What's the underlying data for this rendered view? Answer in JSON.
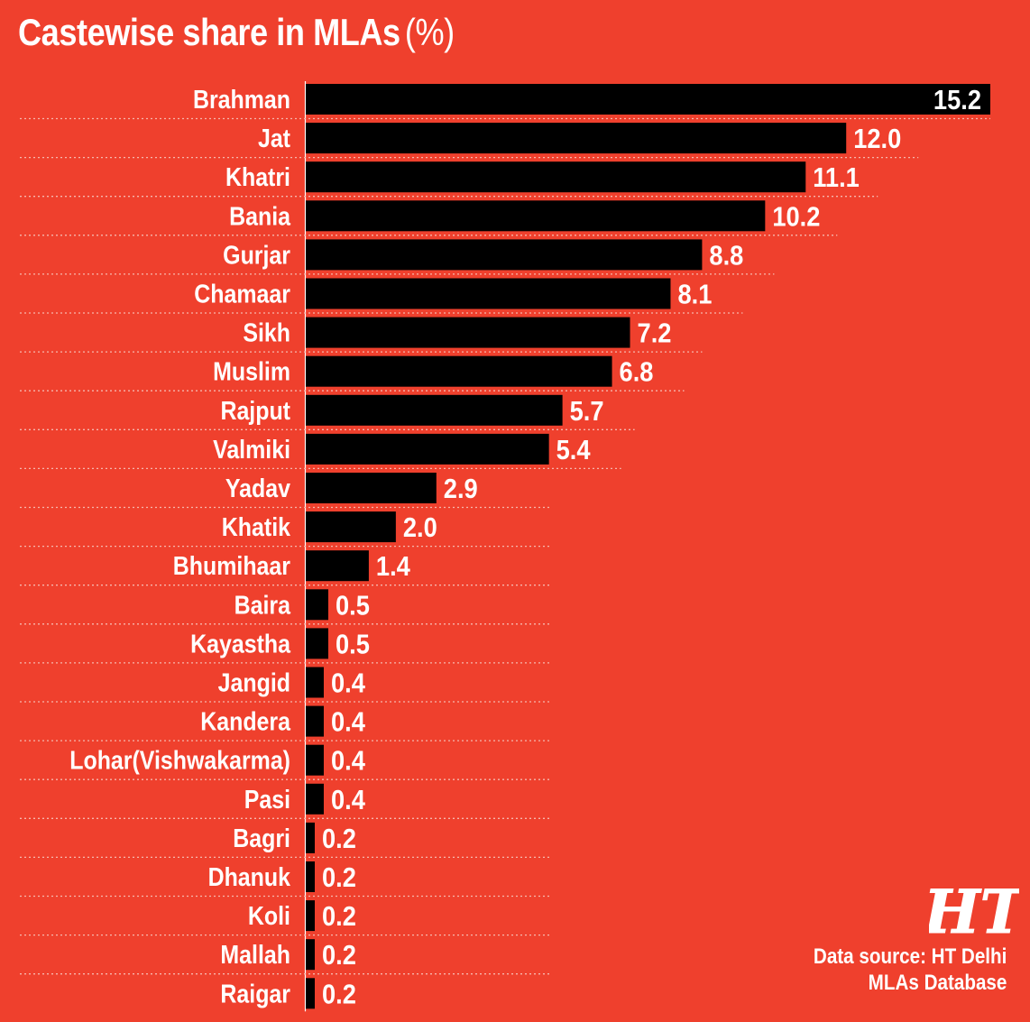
{
  "title": "Castewise share in MLAs",
  "title_unit": "(%)",
  "source_line1": "Data source: HT Delhi",
  "source_line2": "MLAs Database",
  "logo_text": "HT",
  "colors": {
    "background": "#ef402d",
    "bar": "#000000",
    "text": "#ffffff",
    "gridline": "#f6b7ad"
  },
  "chart_data": {
    "type": "bar",
    "orientation": "horizontal",
    "title": "Castewise share in MLAs (%)",
    "xlabel": "",
    "ylabel": "",
    "xlim": [
      0,
      15.2
    ],
    "grid": "dotted row separators",
    "categories": [
      "Brahman",
      "Jat",
      "Khatri",
      "Bania",
      "Gurjar",
      "Chamaar",
      "Sikh",
      "Muslim",
      "Rajput",
      "Valmiki",
      "Yadav",
      "Khatik",
      "Bhumihaar",
      "Baira",
      "Kayastha",
      "Jangid",
      "Kandera",
      "Lohar(Vishwakarma)",
      "Pasi",
      "Bagri",
      "Dhanuk",
      "Koli",
      "Mallah",
      "Raigar"
    ],
    "values": [
      15.2,
      12.0,
      11.1,
      10.2,
      8.8,
      8.1,
      7.2,
      6.8,
      5.7,
      5.4,
      2.9,
      2.0,
      1.4,
      0.5,
      0.5,
      0.4,
      0.4,
      0.4,
      0.4,
      0.2,
      0.2,
      0.2,
      0.2,
      0.2
    ],
    "value_labels": [
      "15.2",
      "12.0",
      "11.1",
      "10.2",
      "8.8",
      "8.1",
      "7.2",
      "6.8",
      "5.7",
      "5.4",
      "2.9",
      "2.0",
      "1.4",
      "0.5",
      "0.5",
      "0.4",
      "0.4",
      "0.4",
      "0.4",
      "0.2",
      "0.2",
      "0.2",
      "0.2",
      "0.2"
    ]
  }
}
